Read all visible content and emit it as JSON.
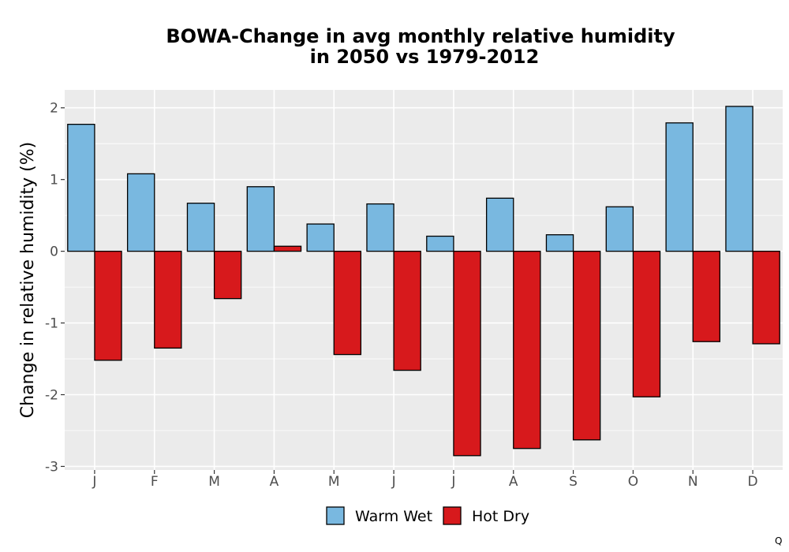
{
  "chart_data": {
    "type": "bar",
    "title_line1": "BOWA-Change in avg monthly relative humidity",
    "title_line2": "in 2050 vs 1979-2012",
    "xlabel": "",
    "ylabel": "Change in relative humidity (%)",
    "categories": [
      "J",
      "F",
      "M",
      "A",
      "M",
      "J",
      "J",
      "A",
      "S",
      "O",
      "N",
      "D"
    ],
    "series": [
      {
        "name": "Warm Wet",
        "color": "#79b8e0",
        "values": [
          1.77,
          1.08,
          0.67,
          0.9,
          0.38,
          0.66,
          0.21,
          0.74,
          0.23,
          0.62,
          1.79,
          2.02
        ]
      },
      {
        "name": "Hot Dry",
        "color": "#d7191c",
        "values": [
          -1.52,
          -1.35,
          -0.66,
          0.07,
          -1.44,
          -1.66,
          -2.85,
          -2.75,
          -2.63,
          -2.03,
          -1.26,
          -1.29
        ]
      }
    ],
    "ylim": [
      -3.05,
      2.25
    ],
    "yticks": [
      2,
      1,
      0,
      -1,
      -2,
      -3
    ],
    "ytick_labels": [
      "2",
      "1",
      "0",
      "-1",
      "-2",
      "-3"
    ],
    "grid": true,
    "legend_position": "bottom",
    "panel_background": "#ebebeb"
  },
  "corner_mark": "Q"
}
